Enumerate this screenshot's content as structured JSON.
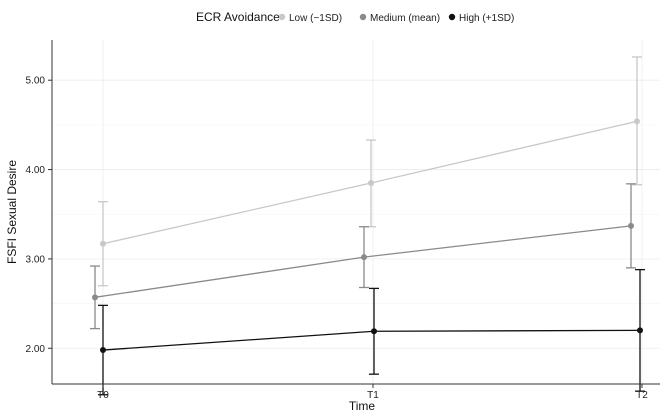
{
  "chart_data": {
    "type": "line",
    "title": "",
    "xlabel": "Time",
    "ylabel": "FSFI Sexual Desire",
    "categories": [
      "T0",
      "T1",
      "T2"
    ],
    "ylim": [
      1.6,
      5.45
    ],
    "yticks": [
      "2.00",
      "3.00",
      "4.00",
      "5.00"
    ],
    "ytick_values": [
      2.0,
      3.0,
      4.0,
      5.0
    ],
    "grid": true,
    "legend": {
      "title": "ECR Avoidance",
      "position": "top"
    },
    "series": [
      {
        "name": "Low (−1SD)",
        "color": "#c8c8c8",
        "values": [
          3.17,
          3.85,
          4.54
        ],
        "lower": [
          2.7,
          3.36,
          3.83
        ],
        "upper": [
          3.64,
          4.33,
          5.26
        ]
      },
      {
        "name": "Medium (mean)",
        "color": "#8a8a8a",
        "values": [
          2.57,
          3.02,
          3.37
        ],
        "lower": [
          2.22,
          2.68,
          2.9
        ],
        "upper": [
          2.92,
          3.36,
          3.84
        ]
      },
      {
        "name": "High (+1SD)",
        "color": "#111111",
        "values": [
          1.98,
          2.19,
          2.2
        ],
        "lower": [
          1.48,
          1.71,
          1.52
        ],
        "upper": [
          2.48,
          2.67,
          2.88
        ]
      }
    ]
  }
}
